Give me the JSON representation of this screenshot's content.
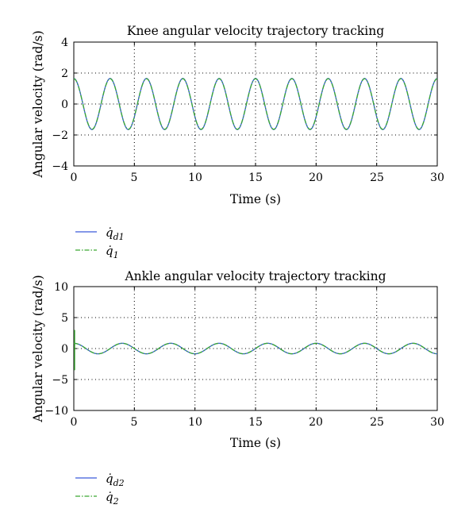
{
  "chart_data": [
    {
      "type": "line",
      "title": "Knee angular velocity trajectory tracking",
      "xlabel": "Time (s)",
      "ylabel": "Angular velocity (rad/s)",
      "xlim": [
        0,
        30
      ],
      "ylim": [
        -4,
        4
      ],
      "xticks": [
        "0",
        "5",
        "10",
        "15",
        "20",
        "25",
        "30"
      ],
      "yticks": [
        "4",
        "2",
        "0",
        "−2",
        "−4"
      ],
      "grid": true,
      "legend_position": "below-left",
      "series": [
        {
          "name_base": "q̇",
          "name_sub": "d1",
          "color": "#3b5bdb",
          "style": "solid",
          "description_values": {
            "amplitude": 1.65,
            "period": 3.0,
            "phase_offset": 0.25
          }
        },
        {
          "name_base": "q̇",
          "name_sub": "1",
          "color": "#3aa832",
          "style": "dash-dot",
          "description_values": {
            "amplitude": 1.65,
            "period": 3.0,
            "phase_offset": 0.25
          }
        }
      ],
      "x": [
        0,
        1.5,
        3,
        4.5,
        6,
        7.5,
        9,
        10.5,
        12,
        13.5,
        15,
        16.5,
        18,
        19.5,
        21,
        22.5,
        24,
        25.5,
        27,
        28.5,
        30
      ],
      "values": [
        1.6,
        -1.65,
        1.65,
        -1.65,
        1.65,
        -1.65,
        1.65,
        -1.65,
        1.65,
        -1.65,
        1.65,
        -1.65,
        1.65,
        -1.65,
        1.65,
        -1.65,
        1.65,
        -1.65,
        1.65,
        -1.65,
        1.6
      ]
    },
    {
      "type": "line",
      "title": "Ankle angular velocity trajectory tracking",
      "xlabel": "Time (s)",
      "ylabel": "Angular velocity (rad/s)",
      "xlim": [
        0,
        30
      ],
      "ylim": [
        -10,
        10
      ],
      "xticks": [
        "0",
        "5",
        "10",
        "15",
        "20",
        "25",
        "30"
      ],
      "yticks": [
        "10",
        "5",
        "0",
        "−5",
        "−10"
      ],
      "grid": true,
      "legend_position": "below-left",
      "series": [
        {
          "name_base": "q̇",
          "name_sub": "d2",
          "color": "#3b5bdb",
          "style": "solid",
          "description_values": {
            "amplitude": 0.85,
            "period": 4.0,
            "phase_offset": 0.25
          }
        },
        {
          "name_base": "q̇",
          "name_sub": "2",
          "color": "#3aa832",
          "style": "dash-dot",
          "description_values": {
            "amplitude": 0.85,
            "period": 4.0,
            "phase_offset": 0.25
          }
        }
      ],
      "x": [
        0,
        2,
        4,
        6,
        8,
        10,
        12,
        14,
        16,
        18,
        20,
        22,
        24,
        26,
        28,
        30
      ],
      "values": [
        0.8,
        -0.85,
        0.85,
        -0.85,
        0.85,
        -0.85,
        0.85,
        -0.85,
        0.85,
        -0.85,
        0.85,
        -0.85,
        0.85,
        -0.85,
        0.85,
        -0.8
      ],
      "initial_spike_series": "q̇_2",
      "initial_spike_range": [
        -3.5,
        3
      ]
    }
  ]
}
